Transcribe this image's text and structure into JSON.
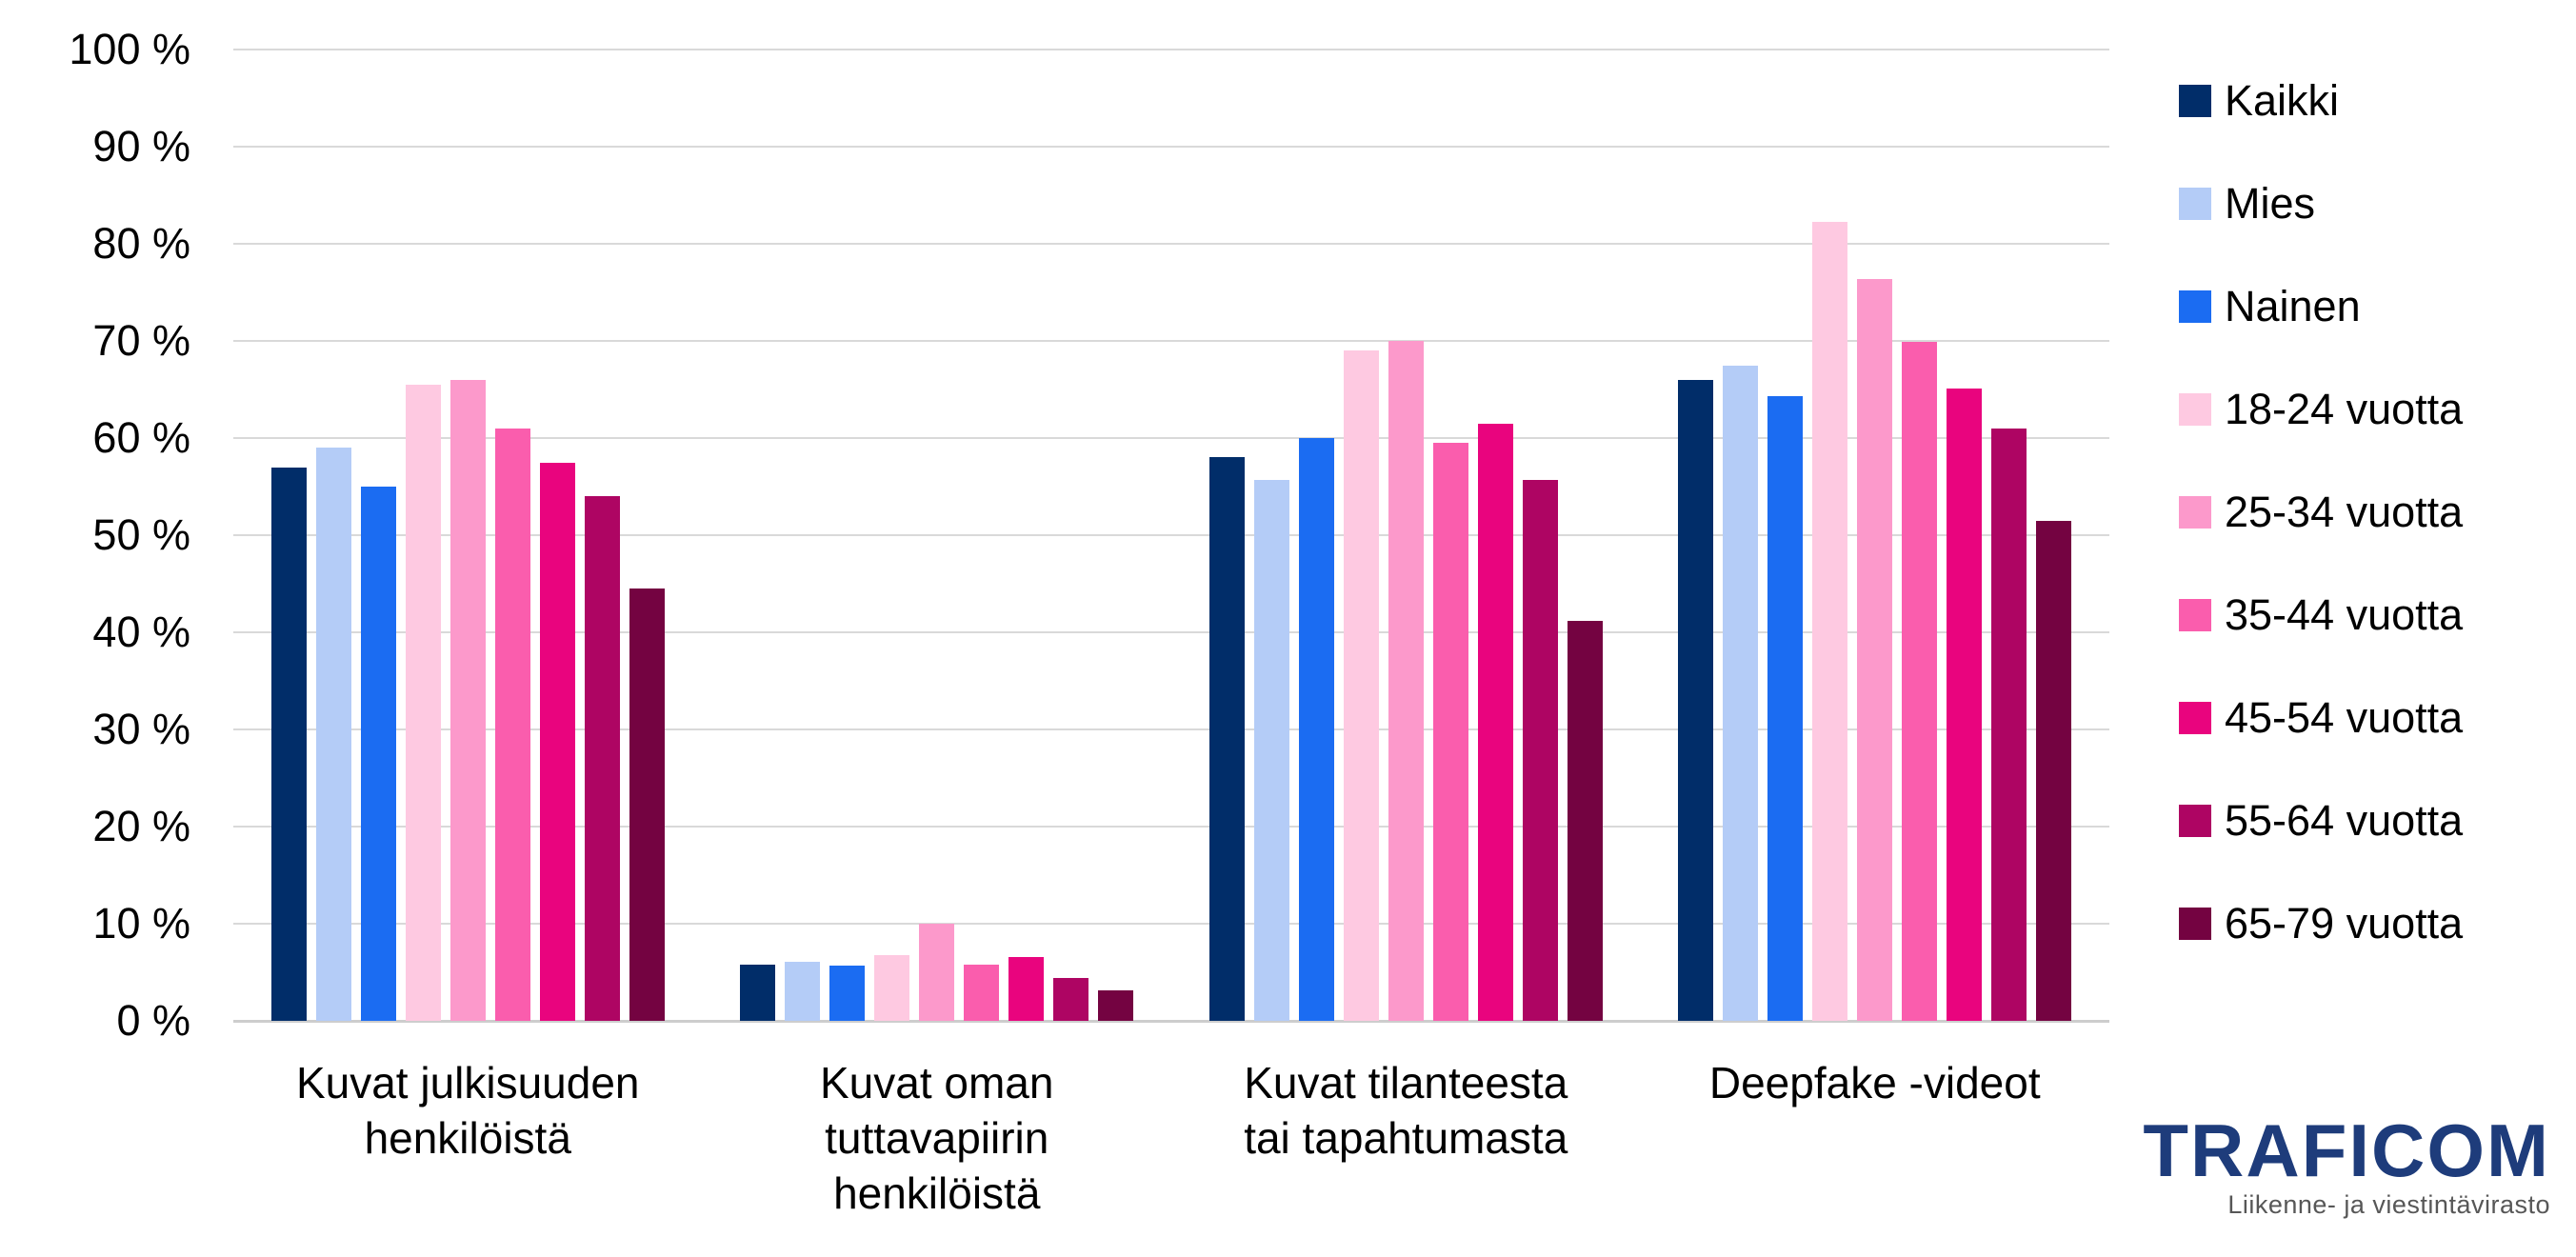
{
  "chart_data": {
    "type": "bar",
    "title": "",
    "categories": [
      "Kuvat julkisuuden henkilöistä",
      "Kuvat oman tuttavapiirin henkilöistä",
      "Kuvat tilanteesta tai tapahtumasta",
      "Deepfake -videot"
    ],
    "category_lines": [
      [
        "Kuvat julkisuuden",
        "henkilöistä"
      ],
      [
        "Kuvat oman",
        "tuttavapiirin",
        "henkilöistä"
      ],
      [
        "Kuvat tilanteesta",
        "tai tapahtumasta"
      ],
      [
        "Deepfake -videot"
      ]
    ],
    "series": [
      {
        "name": "Kaikki",
        "color": "#012D69",
        "values": [
          57,
          5.8,
          58,
          66
        ]
      },
      {
        "name": "Mies",
        "color": "#B4CCF7",
        "values": [
          59,
          6.1,
          55.7,
          67.5
        ]
      },
      {
        "name": "Nainen",
        "color": "#1B6CF2",
        "values": [
          55,
          5.7,
          60,
          64.3
        ]
      },
      {
        "name": "18-24 vuotta",
        "color": "#FEC9E1",
        "values": [
          65.5,
          6.8,
          69,
          82.3
        ]
      },
      {
        "name": "25-34 vuotta",
        "color": "#FC99CB",
        "values": [
          66,
          10,
          70,
          76.4
        ]
      },
      {
        "name": "35-44 vuotta",
        "color": "#FA5DAD",
        "values": [
          61,
          5.8,
          59.5,
          69.9
        ]
      },
      {
        "name": "45-54 vuotta",
        "color": "#E9047E",
        "values": [
          57.5,
          6.6,
          61.5,
          65.1
        ]
      },
      {
        "name": "55-64 vuotta",
        "color": "#AE0563",
        "values": [
          54,
          4.4,
          55.7,
          61
        ]
      },
      {
        "name": "65-79 vuotta",
        "color": "#740341",
        "values": [
          44.5,
          3.1,
          41.2,
          51.5
        ]
      }
    ],
    "y_axis": {
      "min": 0,
      "max": 100,
      "step": 10,
      "unit": "%",
      "tick_labels": [
        "100 %",
        "90 %",
        "80 %",
        "70 %",
        "60 %",
        "50 %",
        "40 %",
        "30 %",
        "20 %",
        "10 %",
        "0 %"
      ]
    },
    "grid": true,
    "legend_position": "right"
  },
  "footer": {
    "brand": "TRAFICOM",
    "subtitle": "Liikenne- ja viestintävirasto"
  },
  "colors": {
    "gridline": "#D9D9D9",
    "axis_line": "#CDCDCD",
    "text": "#000000",
    "brand_navy": "#1E3C7B",
    "subtitle_gray": "#575757"
  }
}
